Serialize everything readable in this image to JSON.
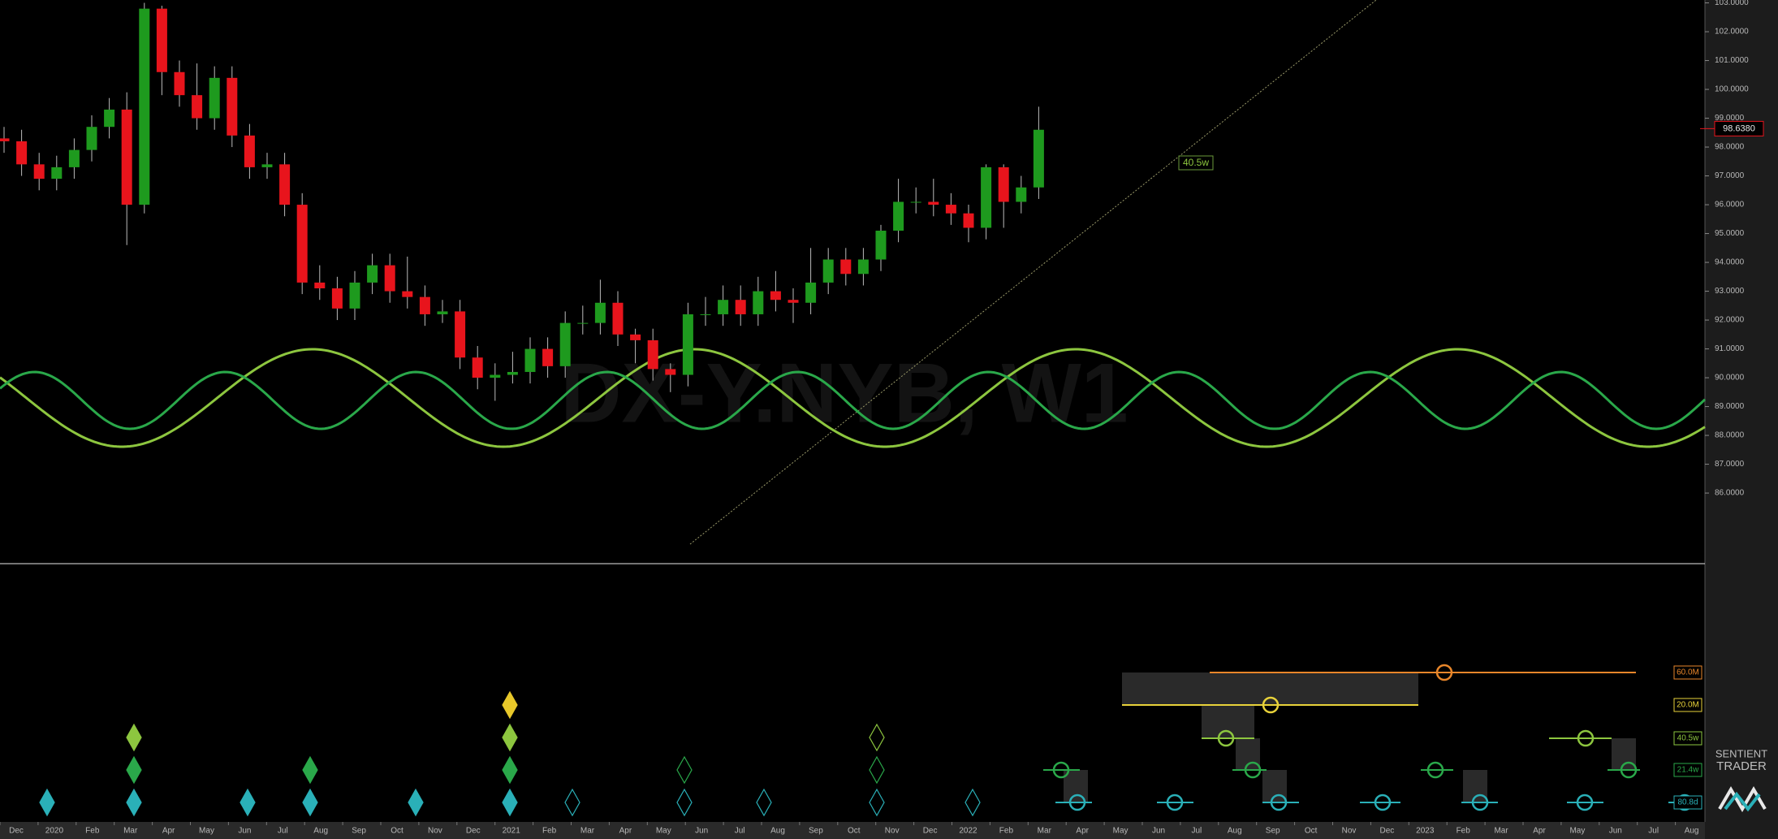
{
  "chart_data": {
    "type": "candlestick",
    "watermark": "DX-Y.NYB, W1",
    "brand": [
      "SENTIENT",
      "TRADER"
    ],
    "x_labels": [
      "Dec",
      "2020",
      "Feb",
      "Mar",
      "Apr",
      "May",
      "Jun",
      "Jul",
      "Aug",
      "Sep",
      "Oct",
      "Nov",
      "Dec",
      "2021",
      "Feb",
      "Mar",
      "Apr",
      "May",
      "Jun",
      "Jul",
      "Aug",
      "Sep",
      "Oct",
      "Nov",
      "Dec",
      "2022",
      "Feb",
      "Mar",
      "Apr",
      "May",
      "Jun",
      "Jul",
      "Aug",
      "Sep",
      "Oct",
      "Nov",
      "Dec",
      "2023",
      "Feb",
      "Mar",
      "Apr",
      "May",
      "Jun",
      "Jul",
      "Aug"
    ],
    "candles": [
      [
        98.3,
        98.7,
        97.8,
        98.2
      ],
      [
        98.2,
        98.6,
        97.0,
        97.4
      ],
      [
        97.4,
        97.8,
        96.5,
        96.9
      ],
      [
        96.9,
        97.7,
        96.5,
        97.3
      ],
      [
        97.3,
        98.3,
        96.9,
        97.9
      ],
      [
        97.9,
        99.1,
        97.5,
        98.7
      ],
      [
        98.7,
        99.7,
        98.3,
        99.3
      ],
      [
        99.3,
        99.9,
        94.6,
        96.0
      ],
      [
        96.0,
        103.0,
        95.7,
        102.8
      ],
      [
        102.8,
        102.9,
        99.8,
        100.6
      ],
      [
        100.6,
        101.0,
        99.4,
        99.8
      ],
      [
        99.8,
        100.9,
        98.6,
        99.0
      ],
      [
        99.0,
        100.8,
        98.6,
        100.4
      ],
      [
        100.4,
        100.8,
        98.0,
        98.4
      ],
      [
        98.4,
        98.8,
        96.9,
        97.3
      ],
      [
        97.3,
        97.8,
        96.9,
        97.4
      ],
      [
        97.4,
        97.8,
        95.6,
        96.0
      ],
      [
        96.0,
        96.4,
        92.9,
        93.3
      ],
      [
        93.3,
        93.9,
        92.7,
        93.1
      ],
      [
        93.1,
        93.5,
        92.0,
        92.4
      ],
      [
        92.4,
        93.7,
        92.0,
        93.3
      ],
      [
        93.3,
        94.3,
        92.9,
        93.9
      ],
      [
        93.9,
        94.3,
        92.6,
        93.0
      ],
      [
        93.0,
        94.2,
        92.4,
        92.8
      ],
      [
        92.8,
        93.2,
        91.8,
        92.2
      ],
      [
        92.2,
        92.7,
        91.9,
        92.3
      ],
      [
        92.3,
        92.7,
        90.3,
        90.7
      ],
      [
        90.7,
        91.1,
        89.6,
        90.0
      ],
      [
        90.0,
        90.5,
        89.2,
        90.1
      ],
      [
        90.1,
        90.9,
        89.8,
        90.2
      ],
      [
        90.2,
        91.4,
        89.8,
        91.0
      ],
      [
        91.0,
        91.4,
        90.0,
        90.4
      ],
      [
        90.4,
        92.3,
        90.0,
        91.9
      ],
      [
        91.9,
        92.5,
        91.5,
        91.9
      ],
      [
        91.9,
        93.4,
        91.5,
        92.6
      ],
      [
        92.6,
        93.0,
        91.1,
        91.5
      ],
      [
        91.5,
        91.7,
        90.5,
        91.3
      ],
      [
        91.3,
        91.7,
        89.9,
        90.3
      ],
      [
        90.3,
        90.5,
        89.5,
        90.1
      ],
      [
        90.1,
        92.6,
        89.7,
        92.2
      ],
      [
        92.2,
        92.8,
        91.8,
        92.2
      ],
      [
        92.2,
        93.2,
        91.8,
        92.7
      ],
      [
        92.7,
        93.2,
        91.8,
        92.2
      ],
      [
        92.2,
        93.5,
        91.8,
        93.0
      ],
      [
        93.0,
        93.7,
        92.3,
        92.7
      ],
      [
        92.7,
        93.1,
        91.9,
        92.6
      ],
      [
        92.6,
        94.5,
        92.2,
        93.3
      ],
      [
        93.3,
        94.5,
        92.9,
        94.1
      ],
      [
        94.1,
        94.5,
        93.2,
        93.6
      ],
      [
        93.6,
        94.5,
        93.2,
        94.1
      ],
      [
        94.1,
        95.3,
        93.7,
        95.1
      ],
      [
        95.1,
        96.9,
        94.7,
        96.1
      ],
      [
        96.1,
        96.6,
        95.7,
        96.1
      ],
      [
        96.1,
        96.9,
        95.6,
        96.0
      ],
      [
        96.0,
        96.4,
        95.3,
        95.7
      ],
      [
        95.7,
        96.0,
        94.7,
        95.2
      ],
      [
        95.2,
        97.4,
        94.8,
        97.3
      ],
      [
        97.3,
        97.4,
        95.2,
        96.1
      ],
      [
        96.1,
        97.0,
        95.7,
        96.6
      ],
      [
        96.6,
        99.4,
        96.2,
        98.6
      ]
    ],
    "up_color": "#1e9a1e",
    "down_color": "#e8141c",
    "ylim": [
      74.65,
      103.1
    ],
    "yticks": [
      {
        "value": 86,
        "label": "86.0000"
      },
      {
        "value": 87,
        "label": "87.0000"
      },
      {
        "value": 88,
        "label": "88.0000"
      },
      {
        "value": 89,
        "label": "89.0000"
      },
      {
        "value": 90,
        "label": "90.0000"
      },
      {
        "value": 91,
        "label": "91.0000"
      },
      {
        "value": 92,
        "label": "92.0000"
      },
      {
        "value": 93,
        "label": "93.0000"
      },
      {
        "value": 94,
        "label": "94.0000"
      },
      {
        "value": 95,
        "label": "95.0000"
      },
      {
        "value": 96,
        "label": "96.0000"
      },
      {
        "value": 97,
        "label": "97.0000"
      },
      {
        "value": 98,
        "label": "98.0000"
      },
      {
        "value": 99,
        "label": "99.0000"
      },
      {
        "value": 100,
        "label": "100.0000"
      },
      {
        "value": 101,
        "label": "101.0000"
      },
      {
        "value": 102,
        "label": "102.0000"
      },
      {
        "value": 103,
        "label": "103.0000"
      }
    ],
    "last_price": {
      "value": 98.638,
      "label": "98.6380"
    },
    "annotation": "40.5w",
    "cycles": [
      {
        "label": "60.0M",
        "color": "#e8862a"
      },
      {
        "label": "20.0M",
        "color": "#e8d23a"
      },
      {
        "label": "40.5w",
        "color": "#8dc63f"
      },
      {
        "label": "21.4w",
        "color": "#2aa84a"
      },
      {
        "label": "80.8d",
        "color": "#2ab0b8"
      }
    ]
  }
}
